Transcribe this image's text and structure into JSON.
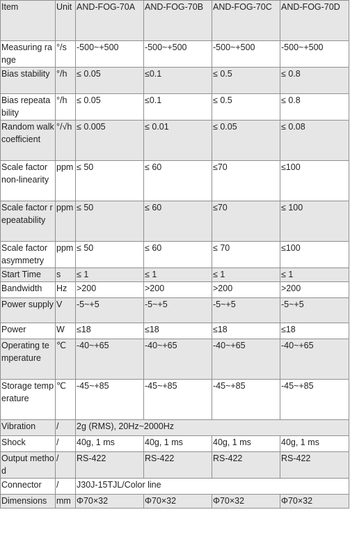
{
  "header": [
    "Item",
    "Unit",
    "AND-FOG-70A",
    "AND-FOG-70B",
    "AND-FOG-70C",
    "AND-FOG-70D"
  ],
  "rows": [
    [
      "Measuring range",
      "°/s",
      "-500~+500",
      "-500~+500",
      "-500~+500",
      "-500~+500"
    ],
    [
      "Bias stability",
      "°/h",
      "≤ 0.05",
      "≤0.1",
      "≤ 0.5",
      "≤ 0.8"
    ],
    [
      "Bias repeatability",
      "°/h",
      "≤ 0.05",
      "≤0.1",
      "≤ 0.5",
      "≤ 0.8"
    ],
    [
      "Random walk coefficient",
      "°/√h",
      "≤ 0.005",
      "≤ 0.01",
      "≤ 0.05",
      "≤ 0.08"
    ],
    [
      "Scale factor non-linearity",
      "ppm",
      "≤ 50",
      "≤ 60",
      "≤70",
      "≤100"
    ],
    [
      "Scale factor repeatability",
      "ppm",
      "≤ 50",
      "≤ 60",
      "≤70",
      "≤ 100"
    ],
    [
      "Scale factor asymmetry",
      "ppm",
      "≤ 50",
      "≤ 60",
      "≤ 70",
      "≤100"
    ],
    [
      "Start Time",
      "s",
      "≤ 1",
      "≤ 1",
      "≤ 1",
      "≤ 1"
    ],
    [
      "Bandwidth",
      "Hz",
      ">200",
      ">200",
      ">200",
      ">200"
    ],
    [
      "Power supply",
      "V",
      "-5~+5",
      "-5~+5",
      "-5~+5",
      "-5~+5"
    ],
    [
      "Power",
      "W",
      "≤18",
      "≤18",
      "≤18",
      "≤18"
    ],
    [
      "Operating temperature",
      "℃",
      "-40~+65",
      "-40~+65",
      "-40~+65",
      "-40~+65"
    ],
    [
      "Storage temperature",
      "℃",
      "-45~+85",
      "-45~+85",
      "-45~+85",
      "-45~+85"
    ],
    [
      "Vibration",
      "/",
      "2g (RMS), 20Hz~2000Hz"
    ],
    [
      "Shock",
      "/",
      "40g, 1 ms",
      "40g, 1 ms",
      "40g, 1 ms",
      "40g, 1 ms"
    ],
    [
      "Output method",
      "/",
      "RS-422",
      "RS-422",
      "RS-422",
      "RS-422"
    ],
    [
      "Connector",
      "/",
      "J30J-15TJL/Color line"
    ],
    [
      "Dimensions",
      "mm",
      "Φ70×32",
      "Φ70×32",
      "Φ70×32",
      "Φ70×32"
    ]
  ]
}
